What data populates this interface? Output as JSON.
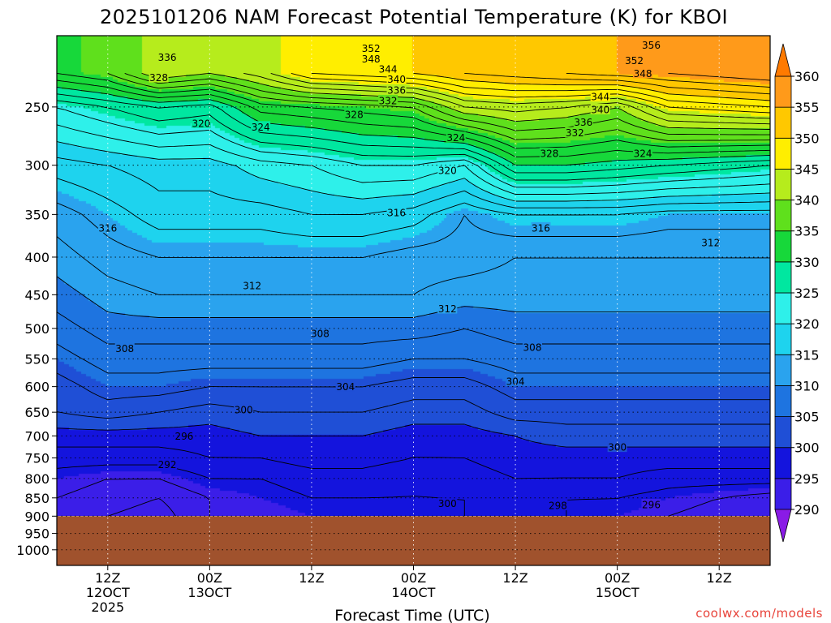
{
  "chart_data": {
    "type": "heatmap",
    "title": "2025101206 NAM Forecast Potential Temperature (K) for KBOI",
    "xlabel": "Forecast Time (UTC)",
    "ylabel": "",
    "units": "K",
    "credit": "coolwx.com/models",
    "x_ticks": [
      {
        "label": [
          "12Z",
          "12OCT",
          "2025"
        ],
        "hours": 6
      },
      {
        "label": [
          "00Z",
          "13OCT"
        ],
        "hours": 18
      },
      {
        "label": [
          "12Z"
        ],
        "hours": 30
      },
      {
        "label": [
          "00Z",
          "14OCT"
        ],
        "hours": 42
      },
      {
        "label": [
          "12Z"
        ],
        "hours": 54
      },
      {
        "label": [
          "00Z",
          "15OCT"
        ],
        "hours": 66
      },
      {
        "label": [
          "12Z"
        ],
        "hours": 78
      }
    ],
    "xlim_hours": [
      0,
      84
    ],
    "y_scale": "log",
    "ylim_hPa": [
      1050,
      200
    ],
    "y_ticks": [
      250,
      300,
      350,
      400,
      450,
      500,
      550,
      600,
      650,
      700,
      750,
      800,
      850,
      900,
      950,
      1000
    ],
    "ground_pressure_hPa": 900,
    "ground_color": "#a0522d",
    "grid": "dotted",
    "colorbar": {
      "levels": [
        290,
        295,
        300,
        305,
        310,
        315,
        320,
        325,
        330,
        335,
        340,
        345,
        350,
        355,
        360
      ],
      "colors": [
        "#8a1be6",
        "#3b1ee8",
        "#1414dd",
        "#1f4fd6",
        "#1e74e0",
        "#2aa3ee",
        "#1ed3ee",
        "#2ef0ea",
        "#00e7a0",
        "#17d83a",
        "#5fe01c",
        "#b6ec1c",
        "#ffee00",
        "#ffc800",
        "#ff9a1a",
        "#ff7a00"
      ],
      "extend": "both"
    },
    "times_hours": [
      0,
      6,
      12,
      18,
      24,
      30,
      36,
      42,
      48,
      54,
      60,
      66,
      72,
      78,
      84
    ],
    "pressure_levels_hPa": [
      225,
      250,
      300,
      350,
      400,
      450,
      500,
      550,
      600,
      650,
      700,
      750,
      800,
      850,
      900
    ],
    "theta_K": [
      [
        334,
        336,
        342,
        340,
        343,
        348,
        349,
        350,
        352,
        353,
        354,
        355,
        356,
        357,
        358
      ],
      [
        324,
        326,
        328,
        327,
        333,
        334,
        335,
        336,
        342,
        343,
        342,
        340,
        346,
        347,
        348
      ],
      [
        317,
        318,
        319,
        319,
        321,
        322,
        324,
        324,
        322,
        330,
        330,
        329,
        328,
        327,
        326
      ],
      [
        313,
        315,
        317,
        317,
        317,
        318,
        318,
        317,
        314,
        316,
        316,
        316,
        315,
        315,
        315
      ],
      [
        311,
        313,
        314,
        314,
        314,
        314,
        314,
        313,
        313,
        312,
        312,
        312,
        312,
        312,
        312
      ],
      [
        309,
        311,
        312,
        312,
        312,
        312,
        312,
        312,
        311,
        311,
        311,
        311,
        311,
        311,
        311
      ],
      [
        307,
        309,
        309,
        309,
        309,
        309,
        309,
        309,
        308,
        309,
        309,
        309,
        309,
        309,
        309
      ],
      [
        305,
        307,
        307,
        307,
        307,
        307,
        307,
        306,
        306,
        307,
        307,
        307,
        307,
        307,
        307
      ],
      [
        303,
        305,
        305,
        304,
        304,
        304,
        304,
        303,
        303,
        305,
        305,
        305,
        305,
        305,
        305
      ],
      [
        302,
        303,
        302,
        301,
        302,
        302,
        302,
        301,
        301,
        303,
        303,
        303,
        303,
        303,
        303
      ],
      [
        299,
        299,
        299,
        299,
        300,
        300,
        300,
        299,
        299,
        300,
        301,
        301,
        301,
        301,
        301
      ],
      [
        297,
        297,
        297,
        298,
        298,
        299,
        299,
        298,
        298,
        299,
        299,
        299,
        299,
        299,
        299
      ],
      [
        295,
        294,
        294,
        296,
        296,
        297,
        297,
        296,
        297,
        298,
        298,
        298,
        297,
        297,
        297
      ],
      [
        294,
        293,
        292,
        294,
        295,
        296,
        296,
        296,
        296,
        297,
        296,
        296,
        295,
        294,
        293
      ],
      [
        293,
        292,
        291,
        294,
        294,
        295,
        295,
        295,
        296,
        296,
        296,
        295,
        294,
        293,
        292
      ]
    ],
    "contour_labels": [
      {
        "text": "352",
        "hours": 37,
        "hPa": 208
      },
      {
        "text": "348",
        "hours": 37,
        "hPa": 215
      },
      {
        "text": "344",
        "hours": 39,
        "hPa": 222
      },
      {
        "text": "340",
        "hours": 40,
        "hPa": 229
      },
      {
        "text": "336",
        "hours": 40,
        "hPa": 237
      },
      {
        "text": "332",
        "hours": 39,
        "hPa": 245
      },
      {
        "text": "328",
        "hours": 35,
        "hPa": 256
      },
      {
        "text": "336",
        "hours": 13,
        "hPa": 214
      },
      {
        "text": "328",
        "hours": 12,
        "hPa": 228
      },
      {
        "text": "320",
        "hours": 17,
        "hPa": 263
      },
      {
        "text": "324",
        "hours": 24,
        "hPa": 266
      },
      {
        "text": "356",
        "hours": 70,
        "hPa": 206
      },
      {
        "text": "352",
        "hours": 68,
        "hPa": 216
      },
      {
        "text": "348",
        "hours": 69,
        "hPa": 225
      },
      {
        "text": "344",
        "hours": 64,
        "hPa": 242
      },
      {
        "text": "340",
        "hours": 64,
        "hPa": 252
      },
      {
        "text": "336",
        "hours": 62,
        "hPa": 262
      },
      {
        "text": "332",
        "hours": 61,
        "hPa": 271
      },
      {
        "text": "328",
        "hours": 58,
        "hPa": 289
      },
      {
        "text": "324",
        "hours": 69,
        "hPa": 289
      },
      {
        "text": "324",
        "hours": 47,
        "hPa": 275
      },
      {
        "text": "320",
        "hours": 46,
        "hPa": 305
      },
      {
        "text": "316",
        "hours": 40,
        "hPa": 348
      },
      {
        "text": "316",
        "hours": 6,
        "hPa": 365
      },
      {
        "text": "316",
        "hours": 57,
        "hPa": 365
      },
      {
        "text": "312",
        "hours": 77,
        "hPa": 382
      },
      {
        "text": "312",
        "hours": 23,
        "hPa": 437
      },
      {
        "text": "312",
        "hours": 46,
        "hPa": 470
      },
      {
        "text": "308",
        "hours": 31,
        "hPa": 508
      },
      {
        "text": "308",
        "hours": 8,
        "hPa": 532
      },
      {
        "text": "308",
        "hours": 56,
        "hPa": 530
      },
      {
        "text": "304",
        "hours": 34,
        "hPa": 600
      },
      {
        "text": "304",
        "hours": 54,
        "hPa": 590
      },
      {
        "text": "300",
        "hours": 22,
        "hPa": 645
      },
      {
        "text": "296",
        "hours": 15,
        "hPa": 700
      },
      {
        "text": "292",
        "hours": 13,
        "hPa": 765
      },
      {
        "text": "300",
        "hours": 66,
        "hPa": 725
      },
      {
        "text": "300",
        "hours": 46,
        "hPa": 865
      },
      {
        "text": "298",
        "hours": 59,
        "hPa": 870
      },
      {
        "text": "296",
        "hours": 70,
        "hPa": 868
      }
    ]
  }
}
